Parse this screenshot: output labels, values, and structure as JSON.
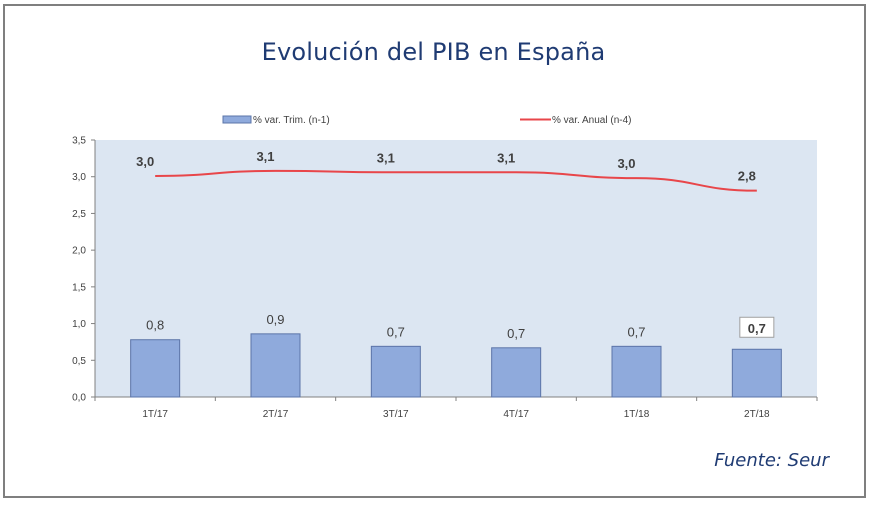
{
  "chart_data": {
    "type": "bar",
    "title": "Evolución del PIB en España",
    "source": "Fuente: Seur",
    "categories": [
      "1T/17",
      "2T/17",
      "3T/17",
      "4T/17",
      "1T/18",
      "2T/18"
    ],
    "series": [
      {
        "name": "% var. Trim. (n-1)",
        "type": "bar",
        "values": [
          0.8,
          0.9,
          0.7,
          0.7,
          0.7,
          0.7
        ],
        "plotted_values": [
          0.78,
          0.86,
          0.69,
          0.67,
          0.69,
          0.65
        ],
        "labels": [
          "0,8",
          "0,9",
          "0,7",
          "0,7",
          "0,7",
          "0,7"
        ],
        "color": "#8faadc"
      },
      {
        "name": "% var. Anual (n-4)",
        "type": "line",
        "values": [
          3.0,
          3.1,
          3.1,
          3.1,
          3.0,
          2.8
        ],
        "plotted_values": [
          3.01,
          3.08,
          3.06,
          3.06,
          2.98,
          2.81
        ],
        "labels": [
          "3,0",
          "3,1",
          "3,1",
          "3,1",
          "3,0",
          "2,8"
        ],
        "color": "#e8464a"
      }
    ],
    "ylim": [
      0,
      3.5
    ],
    "yticks": [
      {
        "value": 0.0,
        "label": "0,0"
      },
      {
        "value": 0.5,
        "label": "0,5"
      },
      {
        "value": 1.0,
        "label": "1,0"
      },
      {
        "value": 1.5,
        "label": "1,5"
      },
      {
        "value": 2.0,
        "label": "2,0"
      },
      {
        "value": 2.5,
        "label": "2,5"
      },
      {
        "value": 3.0,
        "label": "3,0"
      },
      {
        "value": 3.5,
        "label": "3,5"
      }
    ],
    "xlabel": "",
    "ylabel": "",
    "legend_position": "top",
    "grid": false,
    "highlighted_label_index": 5
  },
  "colors": {
    "title": "#1f3b73",
    "plot_background": "#dce6f2",
    "bar_fill": "#8faadc",
    "bar_stroke": "#5b74a8",
    "line": "#e8464a",
    "axis": "#808080"
  }
}
